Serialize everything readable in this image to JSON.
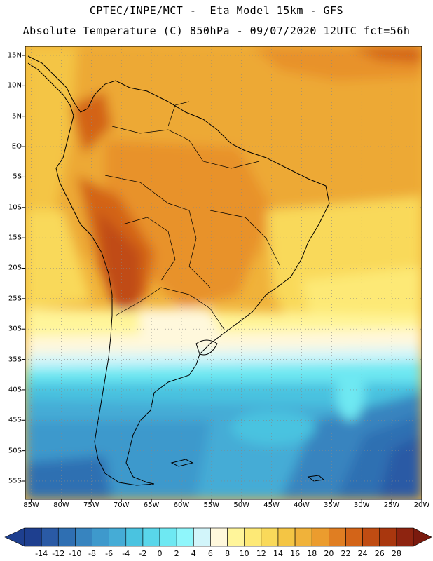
{
  "header": {
    "line1": "CPTEC/INPE/MCT -  Eta Model 15km - GFS",
    "line2": "Absolute Temperature (C) 850hPa - 09/07/2020 12UTC fct=56h"
  },
  "map": {
    "lat_ticks": [
      "15N",
      "10N",
      "5N",
      "EQ",
      "5S",
      "10S",
      "15S",
      "20S",
      "25S",
      "30S",
      "35S",
      "40S",
      "45S",
      "50S",
      "55S"
    ],
    "lon_ticks": [
      "85W",
      "80W",
      "75W",
      "70W",
      "65W",
      "60W",
      "55W",
      "50W",
      "45W",
      "40W",
      "35W",
      "30W",
      "25W",
      "20W"
    ],
    "lat_range": [
      -58,
      16.5
    ],
    "lon_range": [
      -86,
      -20
    ]
  },
  "colorbar": {
    "labels": [
      "-14",
      "-12",
      "-10",
      "-8",
      "-6",
      "-4",
      "-2",
      "0",
      "2",
      "4",
      "6",
      "8",
      "10",
      "12",
      "14",
      "16",
      "18",
      "20",
      "22",
      "24",
      "26",
      "28"
    ],
    "colors": [
      "#1e3f8f",
      "#2a5aa5",
      "#2f6fb2",
      "#3784bf",
      "#3e99cc",
      "#45acd6",
      "#4ac3e0",
      "#59d6ea",
      "#6ee8f2",
      "#8ff6fb",
      "#d2f5fa",
      "#fff8dc",
      "#fff59a",
      "#fde976",
      "#f9d95a",
      "#f4c544",
      "#f0b23a",
      "#eb9c2e",
      "#e07e22",
      "#d36418",
      "#c04c12",
      "#a9370e",
      "#8e2410"
    ]
  }
}
